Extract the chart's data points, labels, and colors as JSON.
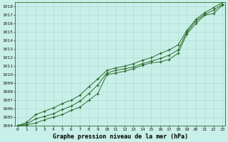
{
  "title": "Graphe pression niveau de la mer (hPa)",
  "bg_color": "#c8f0e8",
  "grid_color": "#aed8d0",
  "line_color": "#2d6b2d",
  "x_ticks": [
    0,
    1,
    2,
    3,
    4,
    5,
    6,
    7,
    8,
    9,
    10,
    11,
    12,
    13,
    14,
    15,
    16,
    17,
    18,
    19,
    20,
    21,
    22,
    23
  ],
  "ylim": [
    1004,
    1018.5
  ],
  "yticks": [
    1004,
    1005,
    1006,
    1007,
    1008,
    1009,
    1010,
    1011,
    1012,
    1013,
    1014,
    1015,
    1016,
    1017,
    1018
  ],
  "series": [
    [
      1004.0,
      1004.1,
      1004.3,
      1004.7,
      1005.0,
      1005.3,
      1005.8,
      1006.2,
      1007.0,
      1007.8,
      1010.0,
      1010.2,
      1010.4,
      1010.7,
      1011.1,
      1011.4,
      1011.5,
      1011.8,
      1012.5,
      1014.8,
      1016.0,
      1017.0,
      1017.2,
      1018.2
    ],
    [
      1004.0,
      1004.2,
      1004.8,
      1005.1,
      1005.4,
      1005.9,
      1006.3,
      1006.9,
      1007.8,
      1008.8,
      1010.2,
      1010.5,
      1010.7,
      1010.9,
      1011.3,
      1011.6,
      1011.9,
      1012.3,
      1012.9,
      1015.0,
      1016.3,
      1017.1,
      1017.6,
      1018.3
    ],
    [
      1004.0,
      1004.4,
      1005.3,
      1005.7,
      1006.1,
      1006.6,
      1007.0,
      1007.6,
      1008.6,
      1009.5,
      1010.5,
      1010.8,
      1011.0,
      1011.3,
      1011.7,
      1012.0,
      1012.5,
      1012.9,
      1013.5,
      1015.2,
      1016.5,
      1017.3,
      1017.9,
      1018.5
    ]
  ]
}
